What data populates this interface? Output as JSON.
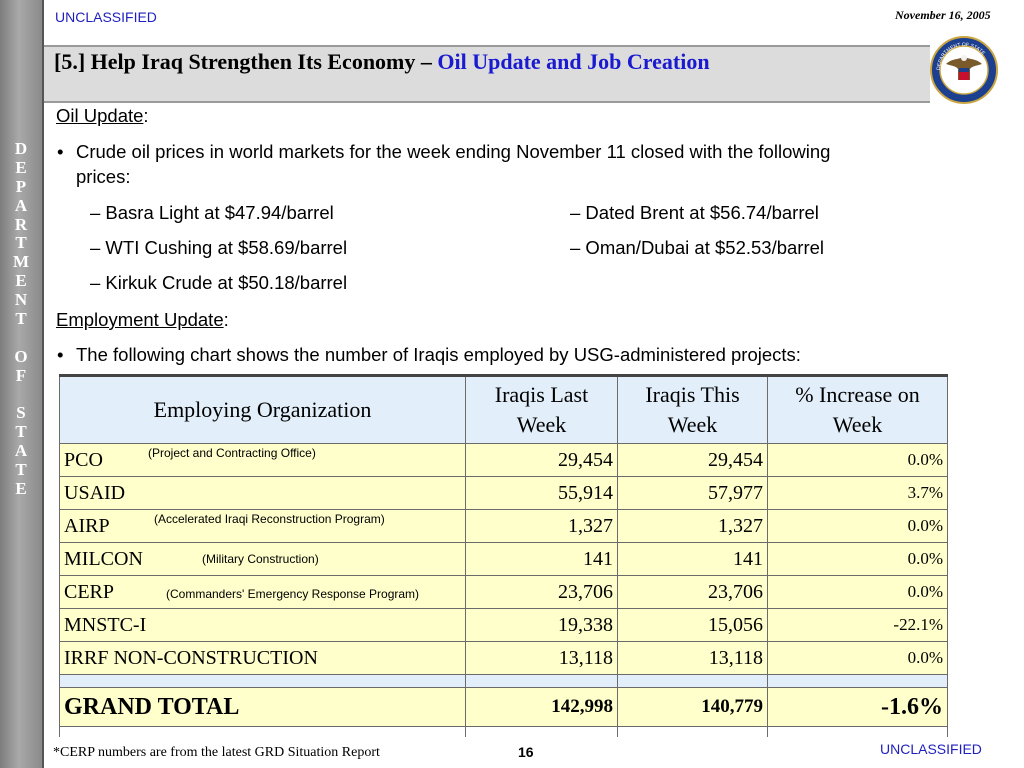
{
  "classification_top": "UNCLASSIFIED",
  "classification_bottom": "UNCLASSIFIED",
  "date": "November 16, 2005",
  "sidebar_letters": [
    "D",
    "E",
    "P",
    "A",
    "R",
    "T",
    "M",
    "E",
    "N",
    "T",
    "",
    "O",
    "F",
    "",
    "S",
    "T",
    "A",
    "T",
    "E"
  ],
  "seal_text": "DEPARTMENT OF STATE · UNITED STATES OF AMERICA",
  "title": {
    "prefix": "[5.] Help Iraq Strengthen Its Economy – ",
    "accent": "Oil Update and Job Creation"
  },
  "oil": {
    "heading": "Oil Update",
    "colon": ":",
    "bullet": "Crude oil prices in world markets for the week ending November 11 closed with the following",
    "bullet_cont": "prices:",
    "prices_left": [
      "– Basra Light at $47.94/barrel",
      "– WTI Cushing at $58.69/barrel",
      "– Kirkuk Crude at $50.18/barrel"
    ],
    "prices_right": [
      "– Dated Brent at $56.74/barrel",
      "– Oman/Dubai at $52.53/barrel"
    ]
  },
  "employment": {
    "heading": "Employment Update",
    "colon": ":",
    "bullet": "The following chart shows the number of Iraqis employed by USG-administered projects:"
  },
  "table": {
    "headers": [
      "Employing Organization",
      "Iraqis Last Week",
      "Iraqis This Week",
      "% Increase on Week"
    ],
    "rows": [
      {
        "org": "PCO",
        "note": "(Project and Contracting Office)",
        "last": "29,454",
        "this": "29,454",
        "pct": "0.0%"
      },
      {
        "org": "USAID",
        "note": "",
        "last": "55,914",
        "this": "57,977",
        "pct": "3.7%"
      },
      {
        "org": "AIRP",
        "note": "(Accelerated Iraqi Reconstruction Program)",
        "last": "1,327",
        "this": "1,327",
        "pct": "0.0%"
      },
      {
        "org": "MILCON",
        "note": "(Military Construction)",
        "last": "141",
        "this": "141",
        "pct": "0.0%"
      },
      {
        "org": "CERP",
        "note": "(Commanders' Emergency Response Program)",
        "last": "23,706",
        "this": "23,706",
        "pct": "0.0%"
      },
      {
        "org": "MNSTC-I",
        "note": "",
        "last": "19,338",
        "this": "15,056",
        "pct": "-22.1%"
      },
      {
        "org": "IRRF NON-CONSTRUCTION",
        "note": "",
        "last": "13,118",
        "this": "13,118",
        "pct": "0.0%"
      }
    ],
    "total": {
      "label": "GRAND TOTAL",
      "last": "142,998",
      "this": "140,779",
      "pct": "-1.6%"
    }
  },
  "footnote": "*CERP numbers are from the latest GRD Situation Report",
  "page_number": "16"
}
